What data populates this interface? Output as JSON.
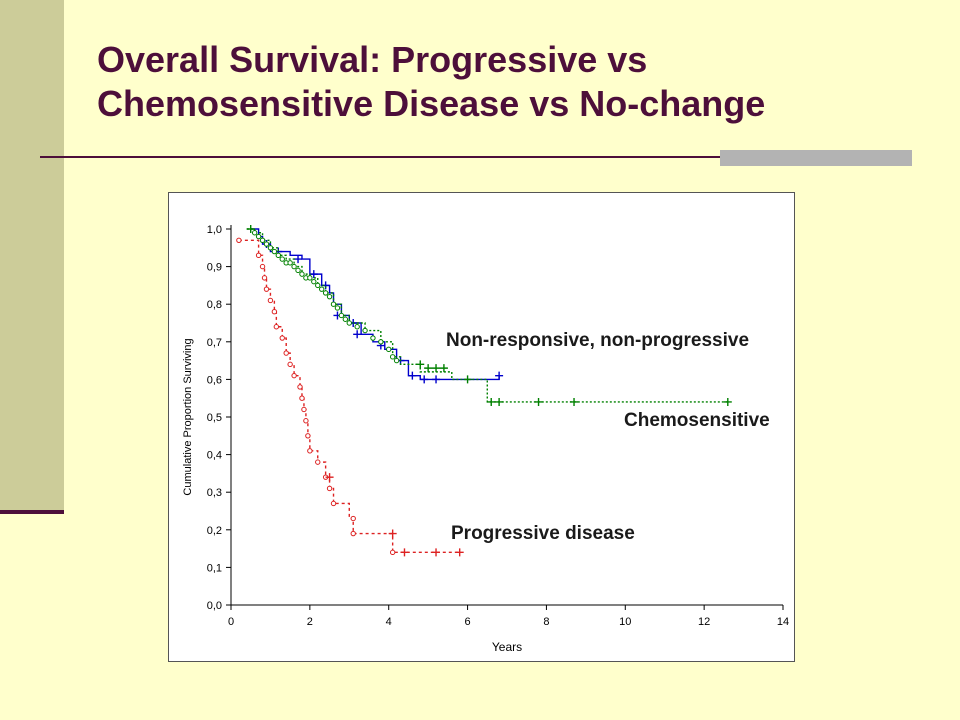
{
  "slide": {
    "title_line1": "Overall Survival: Progressive vs",
    "title_line2": "Chemosensitive Disease vs No-change"
  },
  "colors": {
    "title": "#4d0f3a",
    "sidebar": "#cccc99",
    "background": "#ffffcc",
    "non_responsive": "#0000cc",
    "chemosensitive": "#008000",
    "progressive": "#dd2222"
  },
  "chart_data": {
    "type": "line",
    "xlabel": "Years",
    "ylabel": "Cumulative Proportion Surviving",
    "xlim": [
      0,
      14
    ],
    "ylim": [
      0,
      1
    ],
    "x_ticks": [
      "0",
      "2",
      "4",
      "6",
      "8",
      "10",
      "12",
      "14"
    ],
    "y_ticks": [
      "0,0",
      "0,1",
      "0,2",
      "0,3",
      "0,4",
      "0,5",
      "0,6",
      "0,7",
      "0,8",
      "0,9",
      "1,0"
    ],
    "series": [
      {
        "name": "Non-responsive, non-progressive",
        "step": [
          [
            0.5,
            1.0
          ],
          [
            0.7,
            0.98
          ],
          [
            0.8,
            0.96
          ],
          [
            1.0,
            0.94
          ],
          [
            1.5,
            0.93
          ],
          [
            1.8,
            0.92
          ],
          [
            2.0,
            0.88
          ],
          [
            2.3,
            0.85
          ],
          [
            2.5,
            0.83
          ],
          [
            2.6,
            0.8
          ],
          [
            2.8,
            0.77
          ],
          [
            3.0,
            0.75
          ],
          [
            3.3,
            0.72
          ],
          [
            3.6,
            0.7
          ],
          [
            3.9,
            0.68
          ],
          [
            4.2,
            0.65
          ],
          [
            4.5,
            0.61
          ],
          [
            4.8,
            0.6
          ],
          [
            5.5,
            0.6
          ],
          [
            6.8,
            0.61
          ]
        ],
        "censored": [
          [
            0.9,
            0.96
          ],
          [
            1.2,
            0.94
          ],
          [
            1.7,
            0.92
          ],
          [
            2.1,
            0.88
          ],
          [
            2.4,
            0.85
          ],
          [
            2.7,
            0.77
          ],
          [
            3.1,
            0.75
          ],
          [
            3.2,
            0.72
          ],
          [
            3.8,
            0.69
          ],
          [
            4.3,
            0.65
          ],
          [
            4.6,
            0.61
          ],
          [
            4.9,
            0.6
          ],
          [
            5.2,
            0.6
          ],
          [
            6.8,
            0.61
          ]
        ]
      },
      {
        "name": "Chemosensitive",
        "step": [
          [
            0.4,
            1.0
          ],
          [
            0.6,
            0.99
          ],
          [
            0.8,
            0.97
          ],
          [
            1.0,
            0.95
          ],
          [
            1.2,
            0.93
          ],
          [
            1.4,
            0.92
          ],
          [
            1.6,
            0.9
          ],
          [
            1.8,
            0.88
          ],
          [
            2.0,
            0.87
          ],
          [
            2.2,
            0.85
          ],
          [
            2.4,
            0.83
          ],
          [
            2.6,
            0.8
          ],
          [
            2.8,
            0.77
          ],
          [
            3.0,
            0.75
          ],
          [
            3.4,
            0.73
          ],
          [
            3.8,
            0.7
          ],
          [
            4.1,
            0.66
          ],
          [
            4.3,
            0.64
          ],
          [
            4.8,
            0.62
          ],
          [
            5.6,
            0.6
          ],
          [
            6.5,
            0.54
          ],
          [
            12.6,
            0.54
          ]
        ],
        "censored": [
          [
            0.5,
            1.0
          ],
          [
            4.8,
            0.64
          ],
          [
            5.0,
            0.63
          ],
          [
            5.2,
            0.63
          ],
          [
            5.4,
            0.63
          ],
          [
            6.0,
            0.6
          ],
          [
            6.6,
            0.54
          ],
          [
            6.8,
            0.54
          ],
          [
            7.8,
            0.54
          ],
          [
            8.7,
            0.54
          ],
          [
            12.6,
            0.54
          ]
        ],
        "circles": [
          [
            0.6,
            0.99
          ],
          [
            0.7,
            0.98
          ],
          [
            0.8,
            0.97
          ],
          [
            0.9,
            0.96
          ],
          [
            1.0,
            0.95
          ],
          [
            1.1,
            0.94
          ],
          [
            1.2,
            0.93
          ],
          [
            1.3,
            0.92
          ],
          [
            1.4,
            0.91
          ],
          [
            1.5,
            0.91
          ],
          [
            1.6,
            0.9
          ],
          [
            1.7,
            0.89
          ],
          [
            1.8,
            0.88
          ],
          [
            1.9,
            0.87
          ],
          [
            2.0,
            0.87
          ],
          [
            2.1,
            0.86
          ],
          [
            2.2,
            0.85
          ],
          [
            2.3,
            0.84
          ],
          [
            2.4,
            0.83
          ],
          [
            2.5,
            0.82
          ],
          [
            2.6,
            0.8
          ],
          [
            2.7,
            0.79
          ],
          [
            2.8,
            0.77
          ],
          [
            2.9,
            0.76
          ],
          [
            3.0,
            0.75
          ],
          [
            3.2,
            0.74
          ],
          [
            3.4,
            0.73
          ],
          [
            3.6,
            0.71
          ],
          [
            3.8,
            0.7
          ],
          [
            4.0,
            0.68
          ],
          [
            4.1,
            0.66
          ],
          [
            4.2,
            0.65
          ]
        ]
      },
      {
        "name": "Progressive disease",
        "step": [
          [
            0.2,
            0.97
          ],
          [
            0.6,
            0.97
          ],
          [
            0.7,
            0.93
          ],
          [
            0.8,
            0.9
          ],
          [
            0.85,
            0.87
          ],
          [
            0.9,
            0.84
          ],
          [
            1.0,
            0.81
          ],
          [
            1.1,
            0.78
          ],
          [
            1.15,
            0.74
          ],
          [
            1.3,
            0.71
          ],
          [
            1.4,
            0.67
          ],
          [
            1.5,
            0.64
          ],
          [
            1.6,
            0.61
          ],
          [
            1.75,
            0.58
          ],
          [
            1.8,
            0.55
          ],
          [
            1.85,
            0.52
          ],
          [
            1.9,
            0.49
          ],
          [
            1.95,
            0.45
          ],
          [
            2.0,
            0.41
          ],
          [
            2.2,
            0.38
          ],
          [
            2.4,
            0.34
          ],
          [
            2.5,
            0.31
          ],
          [
            2.6,
            0.27
          ],
          [
            3.0,
            0.23
          ],
          [
            3.1,
            0.19
          ],
          [
            4.0,
            0.19
          ],
          [
            4.1,
            0.14
          ],
          [
            5.8,
            0.14
          ]
        ],
        "censored": [
          [
            2.5,
            0.34
          ],
          [
            4.1,
            0.19
          ],
          [
            4.4,
            0.14
          ],
          [
            5.2,
            0.14
          ],
          [
            5.8,
            0.14
          ]
        ],
        "circles": [
          [
            0.2,
            0.97
          ],
          [
            0.7,
            0.93
          ],
          [
            0.8,
            0.9
          ],
          [
            0.85,
            0.87
          ],
          [
            0.9,
            0.84
          ],
          [
            1.0,
            0.81
          ],
          [
            1.1,
            0.78
          ],
          [
            1.15,
            0.74
          ],
          [
            1.3,
            0.71
          ],
          [
            1.4,
            0.67
          ],
          [
            1.5,
            0.64
          ],
          [
            1.6,
            0.61
          ],
          [
            1.75,
            0.58
          ],
          [
            1.8,
            0.55
          ],
          [
            1.85,
            0.52
          ],
          [
            1.9,
            0.49
          ],
          [
            1.95,
            0.45
          ],
          [
            2.0,
            0.41
          ],
          [
            2.2,
            0.38
          ],
          [
            2.4,
            0.34
          ],
          [
            2.5,
            0.31
          ],
          [
            2.6,
            0.27
          ],
          [
            3.1,
            0.23
          ],
          [
            3.1,
            0.19
          ],
          [
            4.1,
            0.14
          ]
        ]
      }
    ],
    "annotations": [
      "Non-responsive, non-progressive",
      "Chemosensitive",
      "Progressive disease"
    ]
  }
}
